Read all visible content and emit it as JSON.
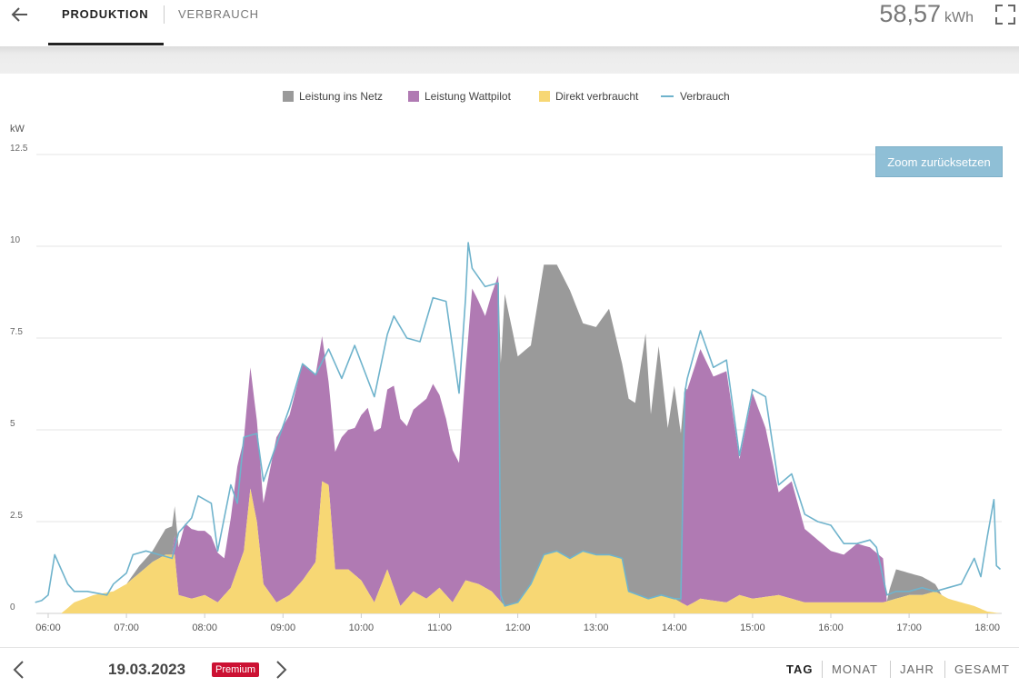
{
  "header": {
    "tabs": [
      {
        "label": "PRODUKTION",
        "active": true
      },
      {
        "label": "VERBRAUCH",
        "active": false
      }
    ],
    "total_value": "58,57",
    "total_unit": "kWh",
    "icons": [
      "back-arrow-icon",
      "fullscreen-icon"
    ]
  },
  "zoom_reset_label": "Zoom zurücksetzen",
  "colors": {
    "grid_feed": "#9a9a9a",
    "wattpilot": "#b07ab3",
    "direct": "#f7d774",
    "consumption": "#6fb3cc",
    "premium": "#cc1133"
  },
  "footer": {
    "date": "19.03.2023",
    "badge": "Premium",
    "periods": [
      {
        "label": "TAG",
        "active": true
      },
      {
        "label": "MONAT",
        "active": false
      },
      {
        "label": "JAHR",
        "active": false
      },
      {
        "label": "GESAMT",
        "active": false
      }
    ]
  },
  "chart_data": {
    "type": "area",
    "ylabel": "kW",
    "ylim": [
      0,
      12.5
    ],
    "yticks": [
      "0",
      "2.5",
      "5",
      "7.5",
      "10",
      "12.5"
    ],
    "xlim": [
      "05:50",
      "18:10"
    ],
    "xticks": [
      "06:00",
      "07:00",
      "08:00",
      "09:00",
      "10:00",
      "11:00",
      "12:00",
      "13:00",
      "14:00",
      "15:00",
      "16:00",
      "17:00",
      "18:00"
    ],
    "legend_position": "top-center",
    "grid": true,
    "series": [
      {
        "name": "Leistung ins Netz",
        "kind": "stacked-area",
        "color": "#9a9a9a",
        "points": [
          [
            "06:00",
            0
          ],
          [
            "06:30",
            0
          ],
          [
            "06:50",
            0
          ],
          [
            "07:00",
            0
          ],
          [
            "07:10",
            0.2
          ],
          [
            "07:20",
            0.3
          ],
          [
            "07:30",
            0.7
          ],
          [
            "07:37",
            0.8
          ],
          [
            "07:40",
            0
          ],
          [
            "10:10",
            0
          ],
          [
            "11:45",
            0
          ],
          [
            "11:47",
            6.5
          ],
          [
            "11:50",
            8.5
          ],
          [
            "12:00",
            6.7
          ],
          [
            "12:10",
            6.5
          ],
          [
            "12:20",
            7.9
          ],
          [
            "12:30",
            7.8
          ],
          [
            "12:40",
            7.3
          ],
          [
            "12:50",
            6.2
          ],
          [
            "13:00",
            6.2
          ],
          [
            "13:10",
            6.7
          ],
          [
            "13:20",
            5.3
          ],
          [
            "13:30",
            5.2
          ],
          [
            "13:38",
            7.2
          ],
          [
            "13:42",
            5.0
          ],
          [
            "13:48",
            6.8
          ],
          [
            "13:55",
            4.6
          ],
          [
            "14:00",
            5.8
          ],
          [
            "14:05",
            4.6
          ],
          [
            "14:08",
            0.1
          ],
          [
            "14:10",
            0
          ],
          [
            "16:43",
            0
          ],
          [
            "16:45",
            0.3
          ],
          [
            "16:50",
            0.8
          ],
          [
            "17:00",
            0.6
          ],
          [
            "17:10",
            0.5
          ],
          [
            "17:20",
            0.2
          ],
          [
            "17:25",
            0
          ]
        ]
      },
      {
        "name": "Leistung Wattpilot",
        "kind": "stacked-area",
        "color": "#b07ab3",
        "points": [
          [
            "06:00",
            0
          ],
          [
            "07:35",
            0
          ],
          [
            "07:40",
            1.3
          ],
          [
            "07:45",
            2.0
          ],
          [
            "07:55",
            1.8
          ],
          [
            "08:05",
            1.7
          ],
          [
            "08:15",
            1.0
          ],
          [
            "08:25",
            2.8
          ],
          [
            "08:35",
            3.3
          ],
          [
            "08:45",
            2.2
          ],
          [
            "08:55",
            4.5
          ],
          [
            "09:05",
            4.9
          ],
          [
            "09:15",
            5.9
          ],
          [
            "09:25",
            5.1
          ],
          [
            "09:35",
            2.8
          ],
          [
            "09:45",
            3.6
          ],
          [
            "09:55",
            4.0
          ],
          [
            "10:05",
            5.0
          ],
          [
            "10:15",
            4.3
          ],
          [
            "10:25",
            5.5
          ],
          [
            "10:35",
            4.7
          ],
          [
            "10:45",
            5.2
          ],
          [
            "10:55",
            5.7
          ],
          [
            "11:05",
            4.8
          ],
          [
            "11:15",
            3.5
          ],
          [
            "11:25",
            8.0
          ],
          [
            "11:35",
            7.4
          ],
          [
            "11:45",
            8.8
          ],
          [
            "11:47",
            0
          ],
          [
            "14:05",
            0
          ],
          [
            "14:08",
            5.8
          ],
          [
            "14:10",
            5.9
          ],
          [
            "14:20",
            6.8
          ],
          [
            "14:30",
            6.1
          ],
          [
            "14:40",
            6.3
          ],
          [
            "14:50",
            3.7
          ],
          [
            "15:00",
            5.6
          ],
          [
            "15:10",
            4.6
          ],
          [
            "15:20",
            2.8
          ],
          [
            "15:30",
            3.2
          ],
          [
            "15:40",
            2.0
          ],
          [
            "15:50",
            1.7
          ],
          [
            "16:00",
            1.4
          ],
          [
            "16:10",
            1.3
          ],
          [
            "16:20",
            1.6
          ],
          [
            "16:30",
            1.5
          ],
          [
            "16:40",
            1.2
          ],
          [
            "16:43",
            0
          ],
          [
            "18:10",
            0
          ]
        ]
      },
      {
        "name": "Direkt verbraucht",
        "kind": "stacked-area",
        "color": "#f7d774",
        "points": [
          [
            "05:50",
            0
          ],
          [
            "06:10",
            0
          ],
          [
            "06:20",
            0.3
          ],
          [
            "06:35",
            0.5
          ],
          [
            "06:50",
            0.6
          ],
          [
            "07:00",
            0.8
          ],
          [
            "07:10",
            1.1
          ],
          [
            "07:20",
            1.4
          ],
          [
            "07:30",
            1.6
          ],
          [
            "07:37",
            1.6
          ],
          [
            "07:40",
            0.5
          ],
          [
            "07:50",
            0.4
          ],
          [
            "08:00",
            0.5
          ],
          [
            "08:10",
            0.3
          ],
          [
            "08:20",
            0.7
          ],
          [
            "08:30",
            1.7
          ],
          [
            "08:35",
            3.4
          ],
          [
            "08:40",
            2.5
          ],
          [
            "08:45",
            0.8
          ],
          [
            "08:55",
            0.3
          ],
          [
            "09:05",
            0.5
          ],
          [
            "09:15",
            0.9
          ],
          [
            "09:25",
            1.4
          ],
          [
            "09:30",
            3.6
          ],
          [
            "09:35",
            3.5
          ],
          [
            "09:40",
            1.2
          ],
          [
            "09:50",
            1.2
          ],
          [
            "10:00",
            0.9
          ],
          [
            "10:10",
            0.3
          ],
          [
            "10:20",
            1.2
          ],
          [
            "10:30",
            0.2
          ],
          [
            "10:40",
            0.6
          ],
          [
            "10:50",
            0.4
          ],
          [
            "11:00",
            0.7
          ],
          [
            "11:10",
            0.3
          ],
          [
            "11:20",
            0.9
          ],
          [
            "11:30",
            0.8
          ],
          [
            "11:40",
            0.6
          ],
          [
            "11:50",
            0.2
          ],
          [
            "12:00",
            0.3
          ],
          [
            "12:10",
            0.8
          ],
          [
            "12:20",
            1.6
          ],
          [
            "12:30",
            1.7
          ],
          [
            "12:40",
            1.5
          ],
          [
            "12:50",
            1.7
          ],
          [
            "13:00",
            1.6
          ],
          [
            "13:10",
            1.6
          ],
          [
            "13:20",
            1.5
          ],
          [
            "13:25",
            0.6
          ],
          [
            "13:40",
            0.4
          ],
          [
            "13:50",
            0.5
          ],
          [
            "14:00",
            0.4
          ],
          [
            "14:10",
            0.2
          ],
          [
            "14:20",
            0.4
          ],
          [
            "14:40",
            0.3
          ],
          [
            "14:50",
            0.5
          ],
          [
            "15:00",
            0.4
          ],
          [
            "15:20",
            0.5
          ],
          [
            "15:40",
            0.3
          ],
          [
            "16:00",
            0.3
          ],
          [
            "16:40",
            0.3
          ],
          [
            "16:50",
            0.4
          ],
          [
            "17:00",
            0.5
          ],
          [
            "17:10",
            0.5
          ],
          [
            "17:20",
            0.6
          ],
          [
            "17:30",
            0.4
          ],
          [
            "17:50",
            0.2
          ],
          [
            "18:00",
            0.05
          ],
          [
            "18:10",
            0
          ]
        ]
      },
      {
        "name": "Verbrauch",
        "kind": "line",
        "color": "#6fb3cc",
        "points": [
          [
            "05:50",
            0.3
          ],
          [
            "05:55",
            0.35
          ],
          [
            "06:00",
            0.5
          ],
          [
            "06:05",
            1.6
          ],
          [
            "06:10",
            1.2
          ],
          [
            "06:15",
            0.8
          ],
          [
            "06:20",
            0.6
          ],
          [
            "06:30",
            0.6
          ],
          [
            "06:45",
            0.5
          ],
          [
            "06:50",
            0.8
          ],
          [
            "07:00",
            1.1
          ],
          [
            "07:05",
            1.6
          ],
          [
            "07:15",
            1.7
          ],
          [
            "07:25",
            1.6
          ],
          [
            "07:35",
            1.5
          ],
          [
            "07:40",
            2.2
          ],
          [
            "07:50",
            2.6
          ],
          [
            "07:55",
            3.2
          ],
          [
            "08:05",
            3.0
          ],
          [
            "08:10",
            1.7
          ],
          [
            "08:20",
            3.5
          ],
          [
            "08:25",
            3.0
          ],
          [
            "08:30",
            4.8
          ],
          [
            "08:40",
            4.9
          ],
          [
            "08:45",
            3.6
          ],
          [
            "08:55",
            4.6
          ],
          [
            "09:05",
            5.6
          ],
          [
            "09:15",
            6.8
          ],
          [
            "09:25",
            6.5
          ],
          [
            "09:35",
            7.2
          ],
          [
            "09:45",
            6.4
          ],
          [
            "09:55",
            7.3
          ],
          [
            "10:10",
            5.9
          ],
          [
            "10:20",
            7.6
          ],
          [
            "10:25",
            8.1
          ],
          [
            "10:35",
            7.5
          ],
          [
            "10:45",
            7.4
          ],
          [
            "10:55",
            8.6
          ],
          [
            "11:05",
            8.5
          ],
          [
            "11:15",
            6.0
          ],
          [
            "11:20",
            8.6
          ],
          [
            "11:22",
            10.1
          ],
          [
            "11:25",
            9.4
          ],
          [
            "11:35",
            8.9
          ],
          [
            "11:45",
            9.0
          ],
          [
            "11:47",
            0.5
          ],
          [
            "11:50",
            0.2
          ],
          [
            "12:00",
            0.3
          ],
          [
            "12:10",
            0.8
          ],
          [
            "12:20",
            1.6
          ],
          [
            "12:30",
            1.7
          ],
          [
            "12:40",
            1.5
          ],
          [
            "12:50",
            1.7
          ],
          [
            "13:00",
            1.6
          ],
          [
            "13:10",
            1.6
          ],
          [
            "13:20",
            1.5
          ],
          [
            "13:25",
            0.6
          ],
          [
            "13:40",
            0.4
          ],
          [
            "13:50",
            0.5
          ],
          [
            "14:00",
            0.4
          ],
          [
            "14:05",
            0.4
          ],
          [
            "14:08",
            6.0
          ],
          [
            "14:10",
            6.4
          ],
          [
            "14:20",
            7.7
          ],
          [
            "14:30",
            6.7
          ],
          [
            "14:40",
            6.9
          ],
          [
            "14:50",
            4.3
          ],
          [
            "15:00",
            6.1
          ],
          [
            "15:10",
            5.9
          ],
          [
            "15:20",
            3.5
          ],
          [
            "15:30",
            3.8
          ],
          [
            "15:40",
            2.7
          ],
          [
            "15:50",
            2.5
          ],
          [
            "16:00",
            2.4
          ],
          [
            "16:10",
            1.9
          ],
          [
            "16:20",
            1.9
          ],
          [
            "16:30",
            2.0
          ],
          [
            "16:35",
            1.8
          ],
          [
            "16:43",
            0.5
          ],
          [
            "16:50",
            0.6
          ],
          [
            "17:00",
            0.6
          ],
          [
            "17:10",
            0.7
          ],
          [
            "17:20",
            0.6
          ],
          [
            "17:30",
            0.7
          ],
          [
            "17:40",
            0.8
          ],
          [
            "17:50",
            1.5
          ],
          [
            "17:55",
            1.0
          ],
          [
            "18:00",
            2.1
          ],
          [
            "18:05",
            3.1
          ],
          [
            "18:07",
            1.3
          ],
          [
            "18:10",
            1.2
          ]
        ]
      }
    ]
  }
}
